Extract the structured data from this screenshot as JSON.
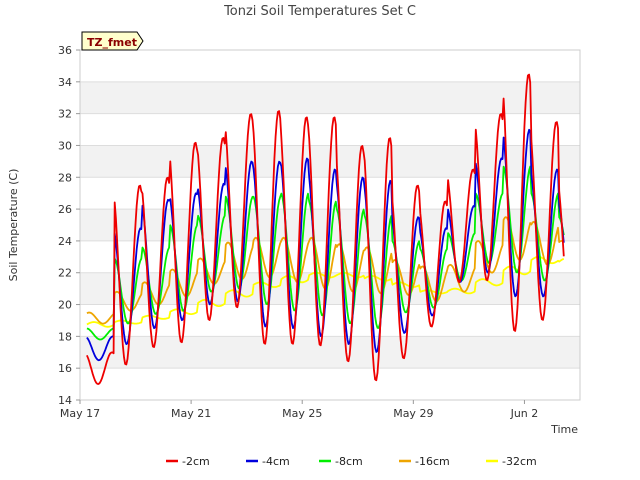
{
  "chart_data": {
    "type": "line",
    "title": "Tonzi Soil Temperatures Set C",
    "xlabel": "Time",
    "ylabel": "Soil Temperature (C)",
    "badge": "TZ_fmet",
    "ylim": [
      14,
      36
    ],
    "yticks": [
      14,
      16,
      18,
      20,
      22,
      24,
      26,
      28,
      30,
      32,
      34,
      36
    ],
    "xlim": [
      "2024-05-17",
      "2024-06-04"
    ],
    "xticks": [
      {
        "date": "2024-05-17",
        "label": "May 17"
      },
      {
        "date": "2024-05-21",
        "label": "May 21"
      },
      {
        "date": "2024-05-25",
        "label": "May 25"
      },
      {
        "date": "2024-05-29",
        "label": "May 29"
      },
      {
        "date": "2024-06-02",
        "label": "Jun 2"
      }
    ],
    "grid": true,
    "legend_position": "bottom",
    "x": [
      "2024-05-17",
      "2024-05-18",
      "2024-05-19",
      "2024-05-20",
      "2024-05-21",
      "2024-05-22",
      "2024-05-23",
      "2024-05-24",
      "2024-05-25",
      "2024-05-26",
      "2024-05-27",
      "2024-05-28",
      "2024-05-29",
      "2024-05-30",
      "2024-05-31",
      "2024-06-01",
      "2024-06-02",
      "2024-06-03"
    ],
    "series": [
      {
        "name": "-2cm",
        "color": "#ee0000",
        "daily_max": [
          17.0,
          27.5,
          28.0,
          30.2,
          30.5,
          32.0,
          32.2,
          31.8,
          31.8,
          30.0,
          30.5,
          27.5,
          26.5,
          28.5,
          32.0,
          34.5,
          31.5,
          28.0
        ],
        "daily_min": [
          15.0,
          16.2,
          17.3,
          17.6,
          19.0,
          19.8,
          17.5,
          17.5,
          17.4,
          16.4,
          15.2,
          16.6,
          18.6,
          21.4,
          21.5,
          18.3,
          19.0,
          19.0
        ]
      },
      {
        "name": "-4cm",
        "color": "#0000dd",
        "daily_max": [
          18.0,
          24.8,
          26.6,
          27.0,
          27.6,
          29.0,
          29.0,
          29.2,
          28.5,
          28.0,
          27.8,
          25.5,
          24.8,
          26.2,
          29.2,
          31.0,
          28.5,
          26.5
        ],
        "daily_min": [
          16.5,
          17.5,
          18.5,
          19.0,
          20.0,
          20.2,
          18.6,
          18.5,
          18.0,
          17.5,
          17.0,
          18.2,
          19.3,
          21.4,
          22.0,
          20.5,
          20.5,
          20.8
        ]
      },
      {
        "name": "-8cm",
        "color": "#00ee00",
        "daily_max": [
          18.5,
          22.9,
          23.6,
          25.0,
          25.6,
          26.8,
          26.8,
          27.0,
          26.5,
          26.0,
          25.6,
          24.0,
          23.5,
          24.5,
          27.0,
          28.7,
          27.0,
          25.5
        ],
        "daily_min": [
          17.8,
          18.8,
          19.4,
          19.6,
          20.8,
          21.0,
          20.0,
          19.6,
          19.3,
          18.8,
          18.5,
          19.5,
          19.8,
          21.5,
          22.6,
          22.0,
          21.5,
          21.8
        ]
      },
      {
        "name": "-16cm",
        "color": "#eea500",
        "daily_max": [
          19.5,
          20.8,
          21.4,
          22.2,
          22.9,
          23.9,
          24.2,
          24.2,
          24.2,
          23.8,
          23.6,
          22.8,
          22.4,
          22.5,
          24.0,
          25.5,
          25.2,
          24.0
        ],
        "daily_min": [
          18.8,
          19.6,
          20.0,
          20.5,
          21.3,
          21.6,
          21.7,
          21.4,
          21.0,
          20.8,
          20.7,
          20.6,
          20.2,
          20.8,
          22.0,
          22.8,
          22.5,
          22.8
        ]
      },
      {
        "name": "-32cm",
        "color": "#ffff00",
        "daily_max": [
          18.9,
          19.0,
          19.3,
          19.7,
          20.3,
          20.9,
          21.4,
          21.8,
          22.0,
          22.0,
          21.8,
          21.4,
          20.9,
          21.0,
          21.6,
          22.4,
          23.0,
          22.9
        ],
        "daily_min": [
          18.6,
          18.8,
          19.1,
          19.4,
          19.9,
          20.5,
          21.1,
          21.4,
          21.7,
          21.7,
          21.5,
          21.1,
          20.7,
          20.7,
          21.2,
          21.9,
          22.6,
          22.5
        ]
      }
    ]
  }
}
